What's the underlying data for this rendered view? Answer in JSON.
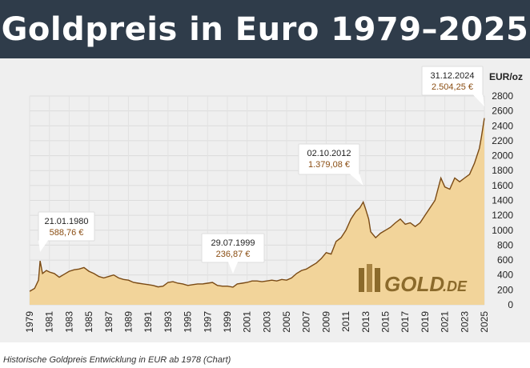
{
  "title": "Goldpreis in Euro 1979–2025",
  "caption": "Historische Goldpreis Entwicklung in EUR ab 1978 (Chart)",
  "logo": {
    "main": "GOLD",
    "suffix": ".DE"
  },
  "colors": {
    "header": "#2f3c4a",
    "fill": "#f2d49a",
    "line": "#7a4a14",
    "background": "#efefef"
  },
  "chart_data": {
    "type": "area",
    "ylabel": "EUR/oz",
    "ylim": [
      0,
      2800
    ],
    "yticks": [
      0,
      200,
      400,
      600,
      800,
      1000,
      1200,
      1400,
      1600,
      1800,
      2000,
      2200,
      2400,
      2600,
      2800
    ],
    "xlim": [
      1979,
      2025
    ],
    "xticks": [
      "1979",
      "1981",
      "1983",
      "1985",
      "1987",
      "1989",
      "1991",
      "1993",
      "1995",
      "1997",
      "1999",
      "2001",
      "2003",
      "2005",
      "2007",
      "2009",
      "2011",
      "2013",
      "2015",
      "2017",
      "2019",
      "2021",
      "2023",
      "2025"
    ],
    "grid": true,
    "series": [
      {
        "x": [
          1979.0,
          1979.5,
          1979.9,
          1980.06,
          1980.3,
          1980.7,
          1981.0,
          1981.5,
          1982.0,
          1982.5,
          1983.0,
          1983.5,
          1984.0,
          1984.5,
          1985.0,
          1985.5,
          1986.0,
          1986.5,
          1987.0,
          1987.5,
          1988.0,
          1988.5,
          1989.0,
          1989.5,
          1990.0,
          1990.5,
          1991.0,
          1991.5,
          1992.0,
          1992.5,
          1993.0,
          1993.5,
          1994.0,
          1994.5,
          1995.0,
          1995.5,
          1996.0,
          1996.5,
          1997.0,
          1997.5,
          1998.0,
          1998.5,
          1999.0,
          1999.57,
          2000.0,
          2000.5,
          2001.0,
          2001.5,
          2002.0,
          2002.5,
          2003.0,
          2003.5,
          2004.0,
          2004.5,
          2005.0,
          2005.5,
          2006.0,
          2006.5,
          2007.0,
          2007.5,
          2008.0,
          2008.5,
          2009.0,
          2009.5,
          2010.0,
          2010.5,
          2011.0,
          2011.5,
          2012.0,
          2012.4,
          2012.75,
          2013.0,
          2013.3,
          2013.5,
          2014.0,
          2014.5,
          2015.0,
          2015.5,
          2016.0,
          2016.5,
          2017.0,
          2017.5,
          2018.0,
          2018.5,
          2019.0,
          2019.5,
          2020.0,
          2020.6,
          2021.0,
          2021.5,
          2022.0,
          2022.5,
          2023.0,
          2023.5,
          2024.0,
          2024.5,
          2024.7,
          2025.0
        ],
        "values": [
          180,
          220,
          330,
          589,
          420,
          460,
          440,
          420,
          370,
          410,
          450,
          470,
          480,
          500,
          450,
          420,
          380,
          360,
          380,
          400,
          360,
          340,
          330,
          300,
          290,
          280,
          270,
          260,
          240,
          250,
          300,
          310,
          290,
          280,
          260,
          270,
          280,
          280,
          290,
          300,
          260,
          250,
          250,
          237,
          280,
          290,
          300,
          320,
          320,
          310,
          320,
          330,
          320,
          340,
          330,
          360,
          420,
          460,
          480,
          520,
          560,
          620,
          700,
          680,
          850,
          900,
          1000,
          1150,
          1250,
          1300,
          1379,
          1280,
          1150,
          980,
          900,
          960,
          1000,
          1040,
          1100,
          1150,
          1080,
          1100,
          1050,
          1100,
          1200,
          1300,
          1400,
          1700,
          1580,
          1550,
          1700,
          1650,
          1700,
          1750,
          1900,
          2100,
          2250,
          2504
        ],
        "name": ""
      }
    ],
    "annotations": [
      {
        "date": "21.01.1980",
        "value_label": "588,76 €",
        "x": 1980.06,
        "y": 588.76
      },
      {
        "date": "29.07.1999",
        "value_label": "236,87 €",
        "x": 1999.57,
        "y": 236.87
      },
      {
        "date": "02.10.2012",
        "value_label": "1.379,08 €",
        "x": 2012.75,
        "y": 1379.08
      },
      {
        "date": "31.12.2024",
        "value_label": "2.504,25 €",
        "x": 2025.0,
        "y": 2504.25
      }
    ]
  }
}
